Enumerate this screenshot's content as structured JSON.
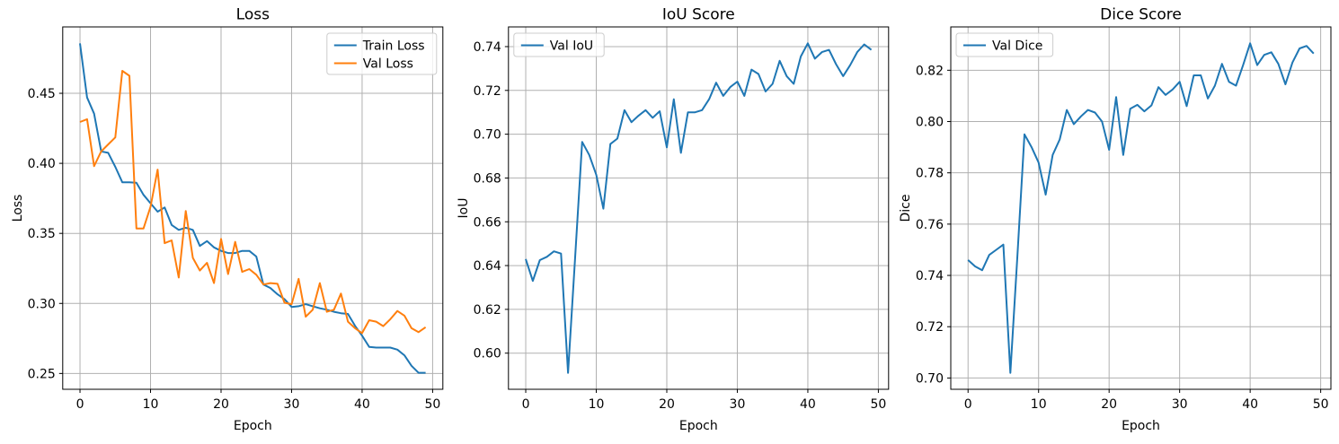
{
  "figure": {
    "background": "#ffffff",
    "grid_color": "#b0b0b0",
    "spine_color": "#000000",
    "text_color": "#000000",
    "line_colors": {
      "train": "#1f77b4",
      "val": "#ff7f0e"
    }
  },
  "chart_data": [
    {
      "type": "line",
      "title": "Loss",
      "xlabel": "Epoch",
      "ylabel": "Loss",
      "grid": true,
      "xlim": [
        -2.45,
        51.45
      ],
      "ylim": [
        0.2387,
        0.4974
      ],
      "xticks": [
        0,
        10,
        20,
        30,
        40,
        50
      ],
      "yticks": [
        0.25,
        0.3,
        0.35,
        0.4,
        0.45
      ],
      "ytick_decimals": 2,
      "legend": {
        "loc": "upper right"
      },
      "x": [
        0,
        1,
        2,
        3,
        4,
        5,
        6,
        7,
        8,
        9,
        10,
        11,
        12,
        13,
        14,
        15,
        16,
        17,
        18,
        19,
        20,
        21,
        22,
        23,
        24,
        25,
        26,
        27,
        28,
        29,
        30,
        31,
        32,
        33,
        34,
        35,
        36,
        37,
        38,
        39,
        40,
        41,
        42,
        43,
        44,
        45,
        46,
        47,
        48,
        49
      ],
      "series": [
        {
          "name": "Train Loss",
          "color": "#1f77b4",
          "values": [
            0.4856,
            0.447,
            0.4355,
            0.4085,
            0.4075,
            0.3975,
            0.3865,
            0.3865,
            0.3862,
            0.3775,
            0.3715,
            0.3655,
            0.3685,
            0.356,
            0.3525,
            0.354,
            0.3525,
            0.341,
            0.3445,
            0.34,
            0.3375,
            0.336,
            0.336,
            0.3375,
            0.3375,
            0.3335,
            0.3135,
            0.311,
            0.3065,
            0.303,
            0.2975,
            0.298,
            0.2995,
            0.298,
            0.2965,
            0.2955,
            0.294,
            0.293,
            0.2925,
            0.284,
            0.277,
            0.269,
            0.2685,
            0.2685,
            0.2685,
            0.267,
            0.263,
            0.2555,
            0.2505,
            0.2505
          ]
        },
        {
          "name": "Val Loss",
          "color": "#ff7f0e",
          "values": [
            0.4295,
            0.4315,
            0.398,
            0.4085,
            0.4135,
            0.4185,
            0.466,
            0.4625,
            0.3535,
            0.3535,
            0.369,
            0.3955,
            0.343,
            0.345,
            0.3185,
            0.366,
            0.3325,
            0.3235,
            0.329,
            0.3145,
            0.346,
            0.321,
            0.344,
            0.3225,
            0.3245,
            0.3205,
            0.3135,
            0.3145,
            0.314,
            0.3005,
            0.2995,
            0.3175,
            0.2905,
            0.2955,
            0.3145,
            0.294,
            0.2955,
            0.307,
            0.287,
            0.2823,
            0.2788,
            0.288,
            0.287,
            0.2838,
            0.2887,
            0.2946,
            0.2913,
            0.2823,
            0.2795,
            0.283
          ]
        }
      ]
    },
    {
      "type": "line",
      "title": "IoU Score",
      "xlabel": "Epoch",
      "ylabel": "IoU",
      "grid": true,
      "xlim": [
        -2.45,
        51.45
      ],
      "ylim": [
        0.5835,
        0.749
      ],
      "xticks": [
        0,
        10,
        20,
        30,
        40,
        50
      ],
      "yticks": [
        0.6,
        0.62,
        0.64,
        0.66,
        0.68,
        0.7,
        0.72,
        0.74
      ],
      "ytick_decimals": 2,
      "legend": {
        "loc": "upper left"
      },
      "x": [
        0,
        1,
        2,
        3,
        4,
        5,
        6,
        7,
        8,
        9,
        10,
        11,
        12,
        13,
        14,
        15,
        16,
        17,
        18,
        19,
        20,
        21,
        22,
        23,
        24,
        25,
        26,
        27,
        28,
        29,
        30,
        31,
        32,
        33,
        34,
        35,
        36,
        37,
        38,
        39,
        40,
        41,
        42,
        43,
        44,
        45,
        46,
        47,
        48,
        49
      ],
      "series": [
        {
          "name": "Val IoU",
          "color": "#1f77b4",
          "values": [
            0.643,
            0.633,
            0.6425,
            0.644,
            0.6465,
            0.6455,
            0.591,
            0.6438,
            0.6965,
            0.6905,
            0.6815,
            0.666,
            0.6955,
            0.698,
            0.711,
            0.7055,
            0.7085,
            0.711,
            0.7075,
            0.7105,
            0.694,
            0.716,
            0.6915,
            0.71,
            0.71,
            0.711,
            0.716,
            0.7235,
            0.7175,
            0.7215,
            0.724,
            0.7175,
            0.7295,
            0.7275,
            0.7195,
            0.723,
            0.7335,
            0.7265,
            0.723,
            0.7355,
            0.7415,
            0.7345,
            0.7375,
            0.7385,
            0.732,
            0.7265,
            0.7315,
            0.7375,
            0.741,
            0.7385
          ]
        }
      ]
    },
    {
      "type": "line",
      "title": "Dice Score",
      "xlabel": "Epoch",
      "ylabel": "Dice",
      "grid": true,
      "xlim": [
        -2.45,
        51.45
      ],
      "ylim": [
        0.6956,
        0.8369
      ],
      "xticks": [
        0,
        10,
        20,
        30,
        40,
        50
      ],
      "yticks": [
        0.7,
        0.72,
        0.74,
        0.76,
        0.78,
        0.8,
        0.82
      ],
      "ytick_decimals": 2,
      "legend": {
        "loc": "upper left"
      },
      "x": [
        0,
        1,
        2,
        3,
        4,
        5,
        6,
        7,
        8,
        9,
        10,
        11,
        12,
        13,
        14,
        15,
        16,
        17,
        18,
        19,
        20,
        21,
        22,
        23,
        24,
        25,
        26,
        27,
        28,
        29,
        30,
        31,
        32,
        33,
        34,
        35,
        36,
        37,
        38,
        39,
        40,
        41,
        42,
        43,
        44,
        45,
        46,
        47,
        48,
        49
      ],
      "series": [
        {
          "name": "Val Dice",
          "color": "#1f77b4",
          "values": [
            0.746,
            0.7435,
            0.742,
            0.748,
            0.75,
            0.752,
            0.702,
            0.748,
            0.795,
            0.79,
            0.784,
            0.7715,
            0.787,
            0.793,
            0.8045,
            0.799,
            0.802,
            0.8045,
            0.8035,
            0.8,
            0.789,
            0.8095,
            0.787,
            0.805,
            0.8065,
            0.804,
            0.8063,
            0.8134,
            0.8104,
            0.8125,
            0.8155,
            0.806,
            0.818,
            0.818,
            0.809,
            0.814,
            0.8225,
            0.8155,
            0.814,
            0.822,
            0.8305,
            0.822,
            0.826,
            0.827,
            0.8225,
            0.8145,
            0.823,
            0.8285,
            0.8295,
            0.8265
          ]
        }
      ]
    }
  ]
}
